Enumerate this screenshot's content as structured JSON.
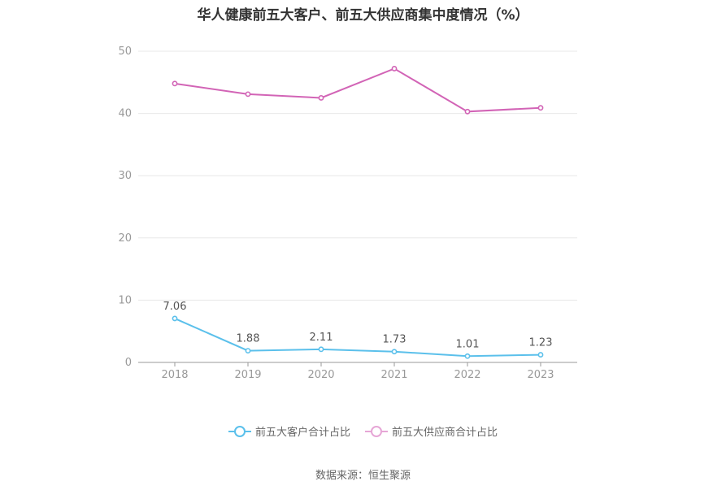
{
  "title": "华人健康前五大客户、前五大供应商集中度情况（%）",
  "source": "数据来源：恒生聚源",
  "chart_data": {
    "type": "line",
    "title": "华人健康前五大客户、前五大供应商集中度情况（%）",
    "x": [
      "2018",
      "2019",
      "2020",
      "2021",
      "2022",
      "2023"
    ],
    "ylim": [
      0,
      50
    ],
    "yticks": [
      0,
      10,
      20,
      30,
      40,
      50
    ],
    "grid": true,
    "legend_position": "bottom",
    "series": [
      {
        "name": "前五大客户合计占比",
        "color": "#5bc0eb",
        "values": [
          7.06,
          1.88,
          2.11,
          1.73,
          1.01,
          1.23
        ],
        "labels": [
          "7.06",
          "1.88",
          "2.11",
          "1.73",
          "1.01",
          "1.23"
        ],
        "show_labels": true
      },
      {
        "name": "前五大供应商合计占比",
        "color": "#d264b6",
        "legend_color": "#e6a6d6",
        "values": [
          44.8,
          43.1,
          42.5,
          47.2,
          40.3,
          40.9
        ],
        "show_labels": false
      }
    ]
  }
}
